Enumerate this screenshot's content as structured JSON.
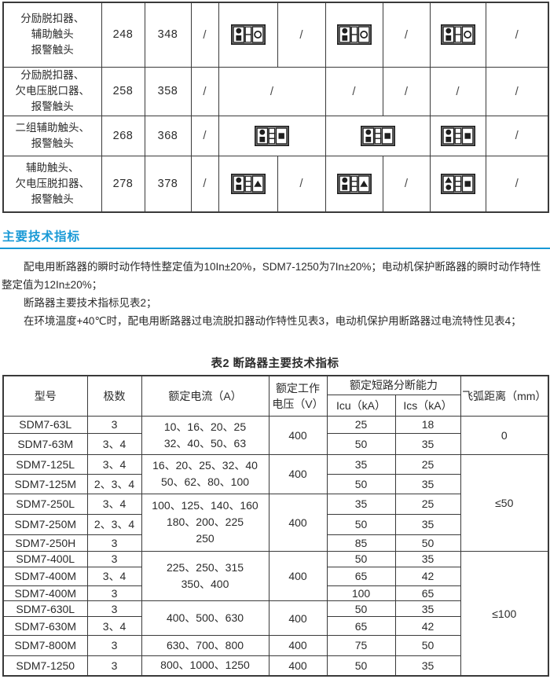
{
  "accessory_table": {
    "slash": "/",
    "icons": [
      {
        "name": "shunt-aux-alarm-combination-icon",
        "left": [
          "circle-filled",
          "square-filled"
        ],
        "middle": 2,
        "right": "circle-open"
      },
      {
        "name": "two-aux-alarm-combination-icon",
        "left": [
          "circle-filled",
          "square-filled"
        ],
        "middle": 3,
        "right": "square-filled"
      },
      {
        "name": "aux-undervoltage-alarm-combination-icon",
        "left": [
          "circle-filled",
          "square-filled"
        ],
        "middle": 3,
        "right": "triangle-filled"
      },
      {
        "name": "undervoltage-aux-alarm-combination-icon",
        "left": [
          "triangle-filled",
          "circle-filled"
        ],
        "middle": 3,
        "right": "square-filled"
      }
    ],
    "rows": [
      {
        "label_lines": [
          "分励脱扣器、",
          "辅助触头",
          "报警触头"
        ],
        "num1": "248",
        "num2": "348",
        "cells": [
          {
            "t": "slash"
          },
          {
            "t": "icon",
            "icon": 0
          },
          {
            "t": "slash"
          },
          {
            "t": "icon",
            "icon": 0
          },
          {
            "t": "slash"
          },
          {
            "t": "icon",
            "icon": 0
          },
          {
            "t": "slash"
          }
        ]
      },
      {
        "label_lines": [
          "分励脱扣器、",
          "欠电压脱口器、",
          "报警触头"
        ],
        "num1": "258",
        "num2": "358",
        "cells": [
          {
            "t": "slash"
          },
          {
            "t": "slash",
            "span": 2
          },
          {
            "t": "slash"
          },
          {
            "t": "slash"
          },
          {
            "t": "slash"
          },
          {
            "t": "slash"
          }
        ]
      },
      {
        "label_lines": [
          "二组辅助触头、",
          "报警触头"
        ],
        "num1": "268",
        "num2": "368",
        "cells": [
          {
            "t": "slash"
          },
          {
            "t": "icon",
            "icon": 1,
            "span": 2
          },
          {
            "t": "icon",
            "icon": 1,
            "span": 2
          },
          {
            "t": "icon",
            "icon": 1
          },
          {
            "t": "slash"
          }
        ]
      },
      {
        "label_lines": [
          "辅助触头、",
          "欠电压脱扣器、",
          "报警触头"
        ],
        "num1": "278",
        "num2": "378",
        "cells": [
          {
            "t": "slash"
          },
          {
            "t": "icon",
            "icon": 2
          },
          {
            "t": "slash"
          },
          {
            "t": "icon",
            "icon": 2
          },
          {
            "t": "slash"
          },
          {
            "t": "icon",
            "icon": 3
          },
          {
            "t": "slash"
          }
        ]
      }
    ]
  },
  "section": {
    "title": "主要技术指标"
  },
  "paragraphs": [
    "配电用断路器的瞬时动作特性整定值为10In±20%，SDM7-1250为7In±20%；电动机保护断路器的瞬时动作特性整定值为12In±20%；",
    "断路器主要技术指标见表2；",
    "在环境温度+40℃时，配电用断路器过电流脱扣器动作特性见表3，电动机保护用断路器过电流特性见表4；"
  ],
  "table2": {
    "title": "表2 断路器主要技术指标",
    "header": {
      "model": "型号",
      "poles": "极数",
      "current": "额定电流（A）",
      "voltage_l1": "额定工作",
      "voltage_l2": "电压（V）",
      "breaking": "额定短路分断能力",
      "icu": "Icu（kA）",
      "ics": "Ics（kA）",
      "arc": "飞弧距离（mm）"
    },
    "rows": [
      {
        "model": "SDM7-63L",
        "poles": "3",
        "icu": "25",
        "ics": "18"
      },
      {
        "model": "SDM7-63M",
        "poles": "3、4",
        "icu": "50",
        "ics": "35"
      },
      {
        "model": "SDM7-125L",
        "poles": "3、4",
        "icu": "35",
        "ics": "25"
      },
      {
        "model": "SDM7-125M",
        "poles": "2、3、4",
        "icu": "50",
        "ics": "35"
      },
      {
        "model": "SDM7-250L",
        "poles": "3、4",
        "icu": "35",
        "ics": "25"
      },
      {
        "model": "SDM7-250M",
        "poles": "2、3、4",
        "icu": "50",
        "ics": "35"
      },
      {
        "model": "SDM7-250H",
        "poles": "3",
        "icu": "85",
        "ics": "50"
      },
      {
        "model": "SDM7-400L",
        "poles": "3",
        "icu": "50",
        "ics": "35"
      },
      {
        "model": "SDM7-400M",
        "poles": "3、4",
        "icu": "65",
        "ics": "42"
      },
      {
        "model": "SDM7-400M",
        "poles": "3",
        "icu": "100",
        "ics": "65"
      },
      {
        "model": "SDM7-630L",
        "poles": "3",
        "icu": "50",
        "ics": "35"
      },
      {
        "model": "SDM7-630M",
        "poles": "3、4",
        "icu": "65",
        "ics": "42"
      },
      {
        "model": "SDM7-800M",
        "poles": "3",
        "icu": "75",
        "ics": "50"
      },
      {
        "model": "SDM7-1250",
        "poles": "3",
        "icu": "50",
        "ics": "35"
      }
    ],
    "current_groups": [
      {
        "start": 0,
        "span": 2,
        "lines": [
          "10、16、20、25",
          "32、40、50、63"
        ],
        "voltage": "400"
      },
      {
        "start": 2,
        "span": 2,
        "lines": [
          "16、20、25、32、40",
          "50、62、80、100"
        ],
        "voltage": "400"
      },
      {
        "start": 4,
        "span": 3,
        "lines": [
          "100、125、140、160",
          "180、200、225",
          "250"
        ],
        "voltage": "400"
      },
      {
        "start": 7,
        "span": 3,
        "lines": [
          "225、250、315",
          "350、400"
        ],
        "voltage": "400"
      },
      {
        "start": 10,
        "span": 2,
        "lines": [
          "400、500、630"
        ],
        "voltage": "400"
      },
      {
        "start": 12,
        "span": 1,
        "lines": [
          "630、700、800"
        ],
        "voltage": "400"
      },
      {
        "start": 13,
        "span": 1,
        "lines": [
          "800、1000、1250"
        ],
        "voltage": "400"
      }
    ],
    "arc_groups": [
      {
        "start": 0,
        "span": 2,
        "value": "0"
      },
      {
        "start": 2,
        "span": 5,
        "value": "≤50"
      },
      {
        "start": 7,
        "span": 7,
        "value": "≤100"
      }
    ]
  }
}
